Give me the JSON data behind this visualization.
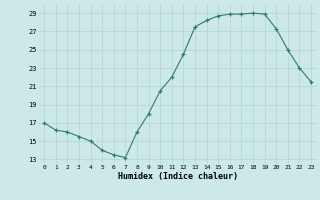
{
  "x": [
    0,
    1,
    2,
    3,
    4,
    5,
    6,
    7,
    8,
    9,
    10,
    11,
    12,
    13,
    14,
    15,
    16,
    17,
    18,
    19,
    20,
    21,
    22,
    23
  ],
  "y": [
    17,
    16.2,
    16.0,
    15.5,
    15.0,
    14.0,
    13.5,
    13.2,
    16.0,
    18.0,
    20.5,
    22.0,
    24.5,
    27.5,
    28.2,
    28.7,
    28.9,
    28.9,
    29.0,
    28.9,
    27.3,
    25.0,
    23.0,
    21.5
  ],
  "xlabel": "Humidex (Indice chaleur)",
  "ylim": [
    12.5,
    30
  ],
  "xlim": [
    -0.5,
    23.5
  ],
  "yticks": [
    13,
    15,
    17,
    19,
    21,
    23,
    25,
    27,
    29
  ],
  "xticks": [
    0,
    1,
    2,
    3,
    4,
    5,
    6,
    7,
    8,
    9,
    10,
    11,
    12,
    13,
    14,
    15,
    16,
    17,
    18,
    19,
    20,
    21,
    22,
    23
  ],
  "line_color": "#2e7d6e",
  "marker_color": "#2e7d6e",
  "bg_color": "#cce8e8",
  "grid_color": "#b0d4d4",
  "title": ""
}
